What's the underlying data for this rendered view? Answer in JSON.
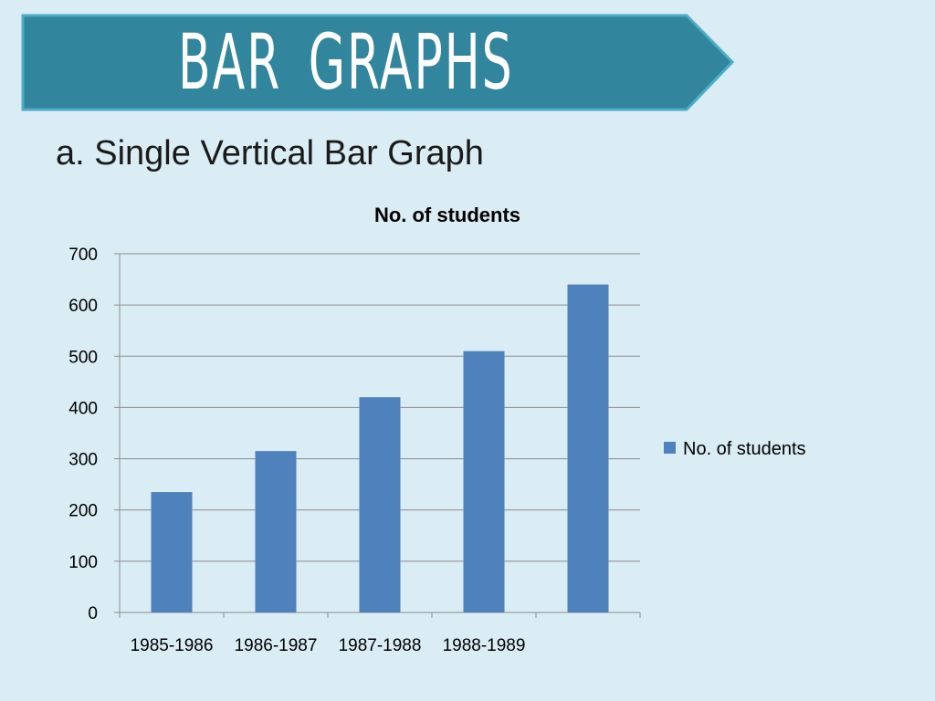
{
  "slide": {
    "title": "BAR  GRAPHS",
    "subtitle": "a. Single Vertical Bar Graph"
  },
  "colors": {
    "background": "#daecf4",
    "banner_fill": "#31859c",
    "banner_border": "#4bacc6",
    "bar_fill": "#4f81bd",
    "gridline": "#8c8c8c"
  },
  "chart_data": {
    "type": "bar",
    "title": "No. of students",
    "categories": [
      "1985-1986",
      "1986-1987",
      "1987-1988",
      "1988-1989",
      ""
    ],
    "series": [
      {
        "name": "No. of students",
        "values": [
          235,
          315,
          420,
          510,
          640
        ]
      }
    ],
    "ylim": [
      0,
      700
    ],
    "yticks": [
      0,
      100,
      200,
      300,
      400,
      500,
      600,
      700
    ],
    "grid": true,
    "legend_position": "right"
  }
}
